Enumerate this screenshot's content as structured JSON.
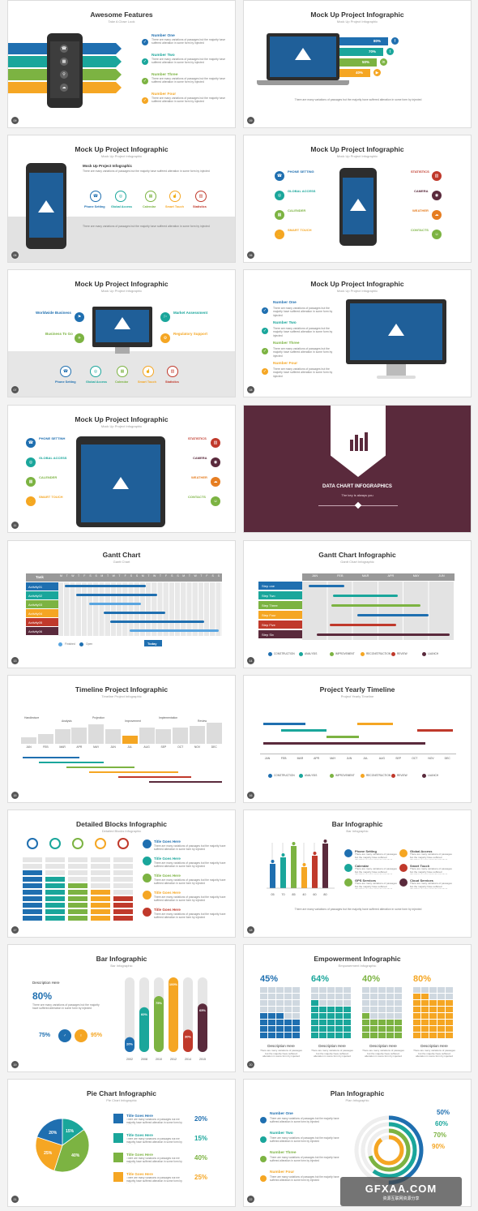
{
  "slides": [
    {
      "title": "Awesome Features",
      "subtitle": "Take A Close Look",
      "num": "09",
      "items": [
        "Number One",
        "Number Two",
        "Number Three",
        "Number Four"
      ],
      "item_text": "There are many variations of passages but the majority have suffered alteration in some form by injected"
    },
    {
      "title": "Mock Up Project Infographic",
      "subtitle": "Mock Up Project Infographic",
      "num": "09",
      "bars": [
        "80%",
        "70%",
        "50%",
        "40%"
      ]
    },
    {
      "title": "Mock Up Project Infographic",
      "subtitle": "Mock Up Project Infographic",
      "num": "05",
      "heading": "Mock Up Project Infographic",
      "icons": [
        "Phone Setting",
        "Global Access",
        "Calendar",
        "Smart Touch",
        "Statistics"
      ]
    },
    {
      "title": "Mock Up Project Infographic",
      "subtitle": "Mock Up Project Infographic",
      "num": "06",
      "left": [
        "PHONE SETTING",
        "GLOBAL ACCESS",
        "CALENDER",
        "SMART TOUCH"
      ],
      "right": [
        "STATISTICS",
        "CAMERA",
        "WEATHER",
        "CONTACTS"
      ]
    },
    {
      "title": "Mock Up Project Infographic",
      "subtitle": "Mock Up Project Infographic",
      "num": "07",
      "left": [
        "Worldwide Business",
        "Business To Go"
      ],
      "right": [
        "Market Assessment",
        "Regulatory Support"
      ],
      "icons": [
        "Phone Setting",
        "Global Access",
        "Calendar",
        "Smart Touch",
        "Statistics"
      ]
    },
    {
      "title": "Mock Up Project Infographic",
      "subtitle": "Mock Up Project Infographic",
      "num": "08",
      "items": [
        "Number One",
        "Number Two",
        "Number Three",
        "Number Four"
      ]
    },
    {
      "title": "Mock Up Project Infographic",
      "subtitle": "Mock Up Project Infographic",
      "num": "11",
      "left": [
        "PHONE SETTINH",
        "GLOBAL ACCESS",
        "CALENDER",
        "SMART TOUCH"
      ],
      "right": [
        "STATISTICS",
        "CAMERA",
        "WEATHER",
        "CONTACTS"
      ]
    },
    {
      "title": "DATA CHART INFOGRAPHICS",
      "subtitle": "The key is always you"
    },
    {
      "title": "Gantt Chart",
      "subtitle": "Gantt Chart",
      "num": "13",
      "task_header": "Task",
      "tasks": [
        "Activity01",
        "Activity02",
        "Activity03",
        "Activity04",
        "Activity05",
        "Activity06"
      ],
      "legend": [
        "Finished",
        "Open"
      ],
      "today": "Today",
      "days": [
        "M",
        "T",
        "W",
        "T",
        "F",
        "S",
        "S",
        "M",
        "T",
        "W",
        "T",
        "F",
        "S",
        "S",
        "M",
        "T",
        "W",
        "T",
        "F",
        "S",
        "S",
        "M",
        "T",
        "W",
        "T",
        "F",
        "S",
        "S"
      ]
    },
    {
      "title": "Gantt Chart Infographic",
      "subtitle": "Gantt Chart Infographic",
      "num": "14",
      "months": [
        "JAN",
        "FEB",
        "MAR",
        "APR",
        "MAY",
        "JUN"
      ],
      "steps": [
        "Step one",
        "Step Two",
        "Step Three",
        "Step Four",
        "Step Five",
        "Step Six"
      ],
      "legend": [
        "CONSTRUCTION",
        "ANALYSIS",
        "IMPROVEMENT",
        "RECONSTRUCTION",
        "REVIEW",
        "LAUNCH"
      ]
    },
    {
      "title": "Timeline Project  Infographic",
      "subtitle": "Timeline Project Infographic",
      "num": "15",
      "labels": [
        "Handlecture",
        "Analysis",
        "Projection",
        "Improvement",
        "Implementation",
        "Review"
      ],
      "months": [
        "JAN",
        "FEB",
        "MAR",
        "APR",
        "MAY",
        "JUN",
        "JUL",
        "AUG",
        "SEP",
        "OCT",
        "NOV",
        "DEC"
      ]
    },
    {
      "title": "Project Yearly Timeline",
      "subtitle": "Project Yearly Timeline",
      "num": "16",
      "months": [
        "JAN",
        "FEB",
        "MAR",
        "APR",
        "MAY",
        "JUN",
        "JUL",
        "AUG",
        "SEP",
        "OCT",
        "NOV",
        "DEC"
      ],
      "legend": [
        "CONSTRUCTION",
        "ANALYSIS",
        "IMPROVEMENT",
        "RECONSTRUCTION",
        "REVIEW",
        "LAUNCH"
      ]
    },
    {
      "title": "Detailed Blocks Infographic",
      "subtitle": "Detailed Blocks Infographic",
      "num": "17",
      "items": [
        "Title Goes Here",
        "Title Goes Here",
        "Title Goes Here",
        "Title Goes Here",
        "Title Goes Here"
      ]
    },
    {
      "title": "Bar Infographic",
      "subtitle": "Bar Infographic",
      "num": "18",
      "xlabels": [
        "05",
        "70",
        "85",
        "40",
        "60",
        "80"
      ],
      "left": [
        "Phone Setting",
        "Calendar",
        "GPS Services"
      ],
      "right": [
        "Global Access",
        "Smart Touch",
        "Cloud Services"
      ]
    },
    {
      "title": "Bar Infographic",
      "subtitle": "Bar Infographic",
      "num": "19",
      "desc": "Description Here",
      "big": "80%",
      "male": "75%",
      "female": "95%",
      "bars": [
        "20%",
        "60%",
        "75%",
        "100%",
        "30%",
        "65%"
      ],
      "years": [
        "2002",
        "2008",
        "2010",
        "2012",
        "2014",
        "2015"
      ]
    },
    {
      "title": "Empowerment Infographic",
      "subtitle": "Empowerment Infographic",
      "num": "20",
      "values": [
        "45%",
        "64%",
        "40%",
        "80%"
      ],
      "desc": "Description Here"
    },
    {
      "title": "Pie Chart Infographic",
      "subtitle": "Pie Chart Infographic",
      "num": "21",
      "items": [
        "Title Goes Here",
        "Title Goes Here",
        "Title Goes Here",
        "Title Goes Here"
      ],
      "values": [
        "20%",
        "15%",
        "40%",
        "25%"
      ],
      "slices": [
        "15%",
        "40%",
        "25%",
        "20%"
      ]
    },
    {
      "title": "Plan Infographic",
      "subtitle": "Plan Infographic",
      "num": "22",
      "items": [
        "Number One",
        "Number Two",
        "Number Three",
        "Number Four"
      ],
      "values": [
        "50%",
        "60%",
        "70%",
        "90%"
      ]
    }
  ],
  "watermark": {
    "main": "GFXAA.COM",
    "sub": "资源互联网资源分享"
  },
  "colors": {
    "blue": "#1f6fb0",
    "teal": "#1aa69b",
    "green": "#7cb342",
    "orange": "#f5a623",
    "red": "#c0392b",
    "maroon": "#5a2a3c"
  }
}
